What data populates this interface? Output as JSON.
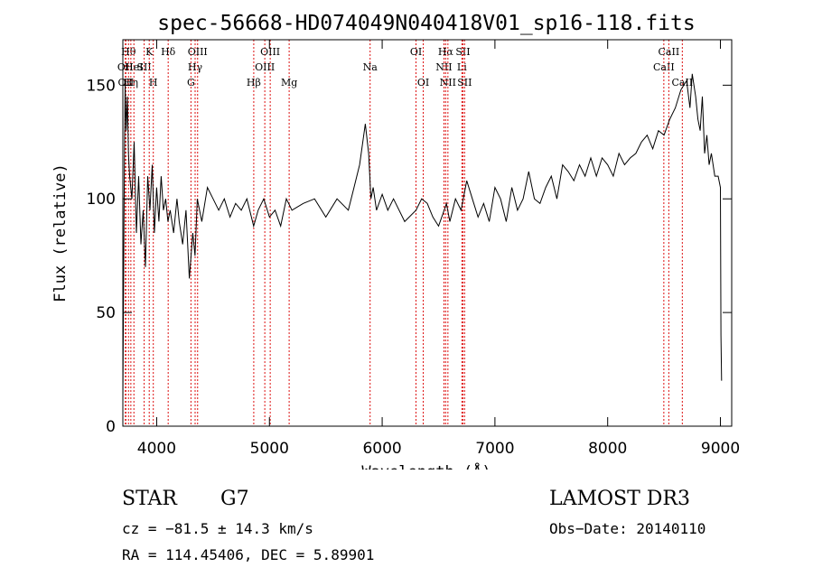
{
  "chart_data": {
    "type": "line",
    "title": "spec-56668-HD074049N040418V01_sp16-118.fits",
    "xlabel": "Wavelength (Å)",
    "ylabel": "Flux (relative)",
    "xlim": [
      3700,
      9100
    ],
    "ylim": [
      0,
      170
    ],
    "xticks": [
      4000,
      5000,
      6000,
      7000,
      8000,
      9000
    ],
    "yticks": [
      0,
      50,
      100,
      150
    ],
    "series": [
      {
        "name": "flux",
        "x": [
          3700,
          3710,
          3720,
          3730,
          3740,
          3750,
          3760,
          3780,
          3800,
          3820,
          3840,
          3860,
          3880,
          3900,
          3920,
          3940,
          3960,
          3980,
          4000,
          4020,
          4040,
          4060,
          4080,
          4100,
          4120,
          4150,
          4180,
          4200,
          4230,
          4260,
          4290,
          4320,
          4340,
          4360,
          4400,
          4450,
          4500,
          4550,
          4600,
          4650,
          4700,
          4750,
          4800,
          4860,
          4900,
          4950,
          5000,
          5050,
          5100,
          5150,
          5200,
          5300,
          5400,
          5500,
          5600,
          5700,
          5750,
          5800,
          5850,
          5880,
          5900,
          5920,
          5950,
          6000,
          6050,
          6100,
          6200,
          6300,
          6350,
          6400,
          6450,
          6500,
          6550,
          6570,
          6600,
          6650,
          6700,
          6750,
          6800,
          6850,
          6900,
          6950,
          7000,
          7050,
          7100,
          7150,
          7200,
          7250,
          7300,
          7350,
          7400,
          7450,
          7500,
          7550,
          7600,
          7650,
          7700,
          7750,
          7800,
          7850,
          7900,
          7950,
          8000,
          8050,
          8100,
          8150,
          8200,
          8250,
          8300,
          8350,
          8400,
          8450,
          8500,
          8550,
          8600,
          8650,
          8700,
          8730,
          8750,
          8780,
          8800,
          8820,
          8840,
          8860,
          8880,
          8900,
          8920,
          8950,
          8980,
          9000,
          9005,
          9010
        ],
        "y": [
          10,
          90,
          150,
          130,
          145,
          120,
          110,
          100,
          125,
          85,
          110,
          80,
          95,
          70,
          110,
          95,
          115,
          85,
          105,
          90,
          110,
          95,
          100,
          90,
          95,
          85,
          100,
          90,
          80,
          95,
          65,
          85,
          75,
          100,
          90,
          105,
          100,
          95,
          100,
          92,
          98,
          95,
          100,
          88,
          95,
          100,
          92,
          95,
          88,
          100,
          95,
          98,
          100,
          92,
          100,
          95,
          105,
          115,
          133,
          120,
          100,
          105,
          95,
          102,
          95,
          100,
          90,
          95,
          100,
          98,
          92,
          88,
          95,
          98,
          90,
          100,
          95,
          108,
          100,
          92,
          98,
          90,
          105,
          100,
          90,
          105,
          95,
          100,
          112,
          100,
          98,
          105,
          110,
          100,
          115,
          112,
          108,
          115,
          110,
          118,
          110,
          118,
          115,
          110,
          120,
          115,
          118,
          120,
          125,
          128,
          122,
          130,
          128,
          135,
          140,
          148,
          152,
          140,
          155,
          145,
          135,
          130,
          145,
          120,
          128,
          115,
          120,
          110,
          110,
          105,
          40,
          20
        ]
      }
    ],
    "lines": [
      {
        "wave": 3722,
        "label": "OII",
        "row": 2
      },
      {
        "wave": 3727,
        "label": "OII",
        "row": 3
      },
      {
        "wave": 3750,
        "label": "Hθ",
        "row": 1
      },
      {
        "wave": 3771,
        "label": "Hη",
        "row": 3
      },
      {
        "wave": 3798,
        "label": "HeI",
        "row": 2
      },
      {
        "wave": 3889,
        "label": "SII",
        "row": 2
      },
      {
        "wave": 3934,
        "label": "K",
        "row": 1
      },
      {
        "wave": 3970,
        "label": "H",
        "row": 3
      },
      {
        "wave": 4102,
        "label": "Hδ",
        "row": 1
      },
      {
        "wave": 4304,
        "label": "G",
        "row": 3
      },
      {
        "wave": 4341,
        "label": "Hγ",
        "row": 2
      },
      {
        "wave": 4363,
        "label": "OIII",
        "row": 1
      },
      {
        "wave": 4861,
        "label": "Hβ",
        "row": 3
      },
      {
        "wave": 4959,
        "label": "OIII",
        "row": 2
      },
      {
        "wave": 5007,
        "label": "OIII",
        "row": 1
      },
      {
        "wave": 5175,
        "label": "Mg",
        "row": 3
      },
      {
        "wave": 5893,
        "label": "Na",
        "row": 2
      },
      {
        "wave": 6300,
        "label": "OI",
        "row": 1
      },
      {
        "wave": 6364,
        "label": "OI",
        "row": 3
      },
      {
        "wave": 6548,
        "label": "NII",
        "row": 2
      },
      {
        "wave": 6563,
        "label": "Hα",
        "row": 1
      },
      {
        "wave": 6583,
        "label": "NII",
        "row": 3
      },
      {
        "wave": 6707,
        "label": "Li",
        "row": 2
      },
      {
        "wave": 6716,
        "label": "SII",
        "row": 1
      },
      {
        "wave": 6731,
        "label": "SII",
        "row": 3
      },
      {
        "wave": 8498,
        "label": "CaII",
        "row": 2
      },
      {
        "wave": 8542,
        "label": "CaII",
        "row": 1
      },
      {
        "wave": 8662,
        "label": "CaII",
        "row": 3
      }
    ]
  },
  "info": {
    "object_class": "STAR",
    "subclass": "G7",
    "survey": "LAMOST DR3",
    "cz": "cz = −81.5 ± 14.3 km/s",
    "obs_date": "Obs−Date: 20140110",
    "coords": "RA = 114.45406, DEC =   5.89901"
  }
}
